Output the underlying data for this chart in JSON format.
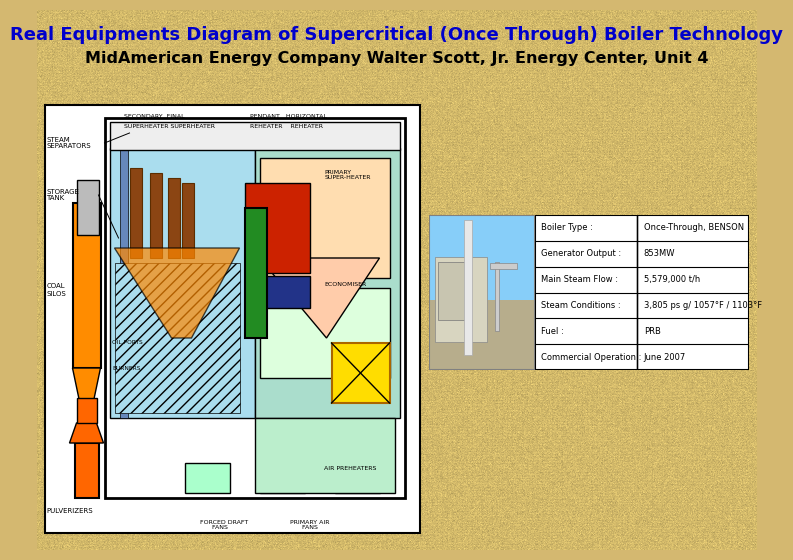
{
  "title1": "Real Equipments Diagram of Supercritical (Once Through) Boiler Technology",
  "title2": "MidAmerican Energy Company Walter Scott, Jr. Energy Center, Unit 4",
  "title1_color": "#0000CC",
  "title2_color": "#000000",
  "bg_color": "#D4B870",
  "table_data": [
    [
      "Boiler Type :",
      "Once-Through, BENSON"
    ],
    [
      "Generator Output :",
      "853MW"
    ],
    [
      "Main Steam Flow :",
      "5,579,000 t/h"
    ],
    [
      "Steam Conditions :",
      "3,805 ps g/ 1057°F / 1103°F"
    ],
    [
      "Fuel :",
      "PRB"
    ],
    [
      "Commercial Operation :",
      "June 2007"
    ]
  ],
  "title1_fontsize": 13,
  "title2_fontsize": 11.5
}
